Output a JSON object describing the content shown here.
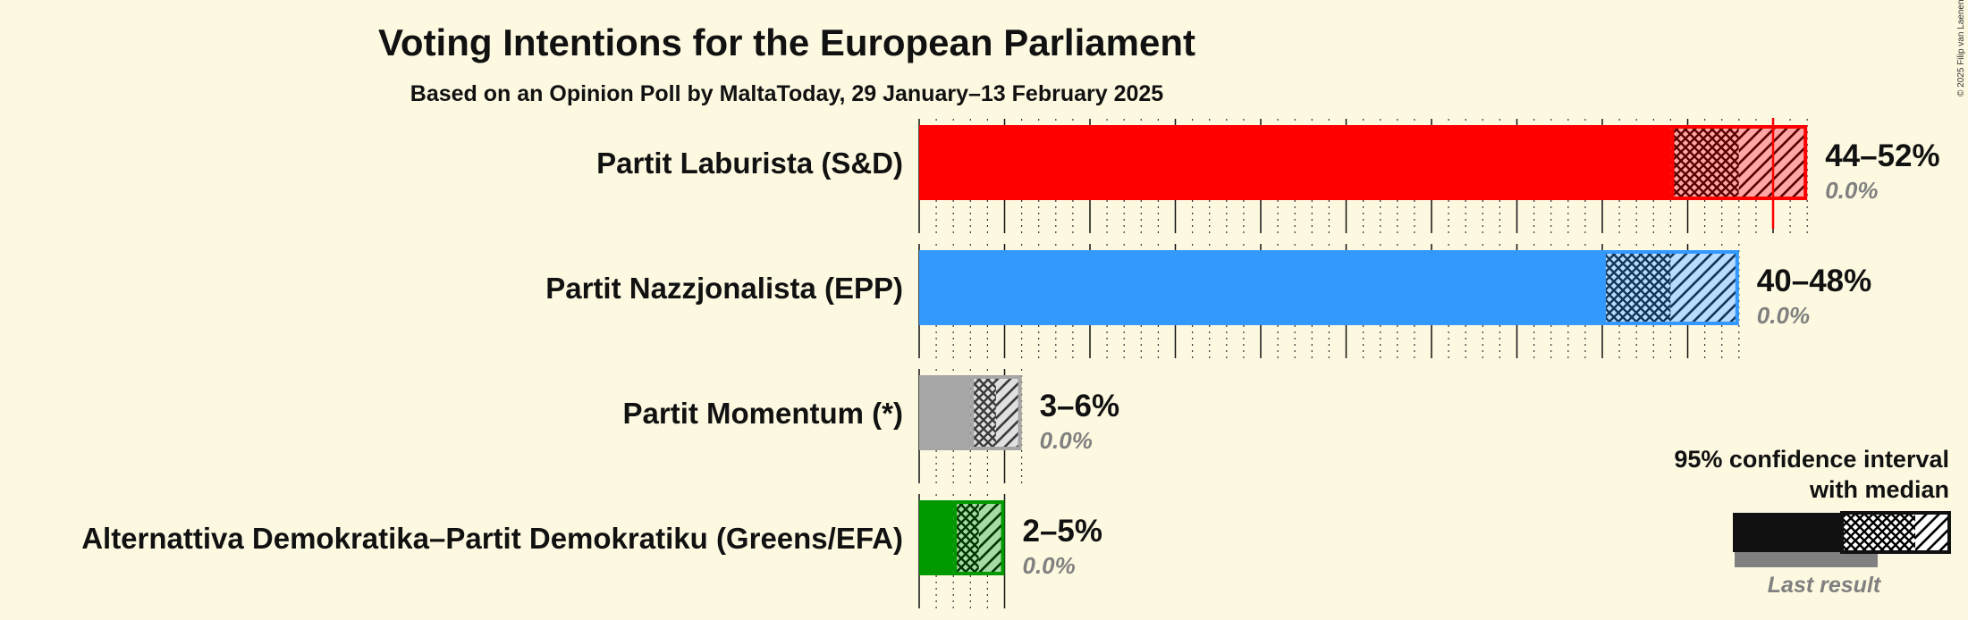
{
  "chart_data": {
    "type": "bar",
    "title": "Voting Intentions for the European Parliament",
    "subtitle": "Based on an Opinion Poll by MaltaToday, 29 January–13 February 2025",
    "categories": [
      "Partit Laburista (S&D)",
      "Partit Nazzjonalista (EPP)",
      "Partit Momentum (*)",
      "Alternattiva Demokratika–Partit Demokratiku (Greens/EFA)"
    ],
    "series": [
      {
        "name": "95% confidence interval low",
        "values": [
          44,
          40,
          3,
          2
        ]
      },
      {
        "name": "median",
        "values": [
          48,
          44,
          4.5,
          3.5
        ]
      },
      {
        "name": "95% confidence interval high",
        "values": [
          52,
          48,
          6,
          5
        ]
      },
      {
        "name": "Last result",
        "values": [
          0.0,
          0.0,
          0.0,
          0.0
        ]
      }
    ],
    "range_labels": [
      "44–52%",
      "40–48%",
      "3–6%",
      "2–5%"
    ],
    "last_labels": [
      "0.0%",
      "0.0%",
      "0.0%",
      "0.0%"
    ],
    "marker_values": [
      50,
      null,
      null,
      null
    ],
    "colors": [
      "#ff0000",
      "#3399ff",
      "#a6a6a6",
      "#009900"
    ],
    "xlim": [
      0,
      52
    ],
    "grid": true,
    "legend_position": "bottom-right",
    "legend": {
      "line1": "95% confidence interval",
      "line2": "with median",
      "last_result": "Last result"
    },
    "copyright": "© 2025 Filip van Laenen"
  }
}
